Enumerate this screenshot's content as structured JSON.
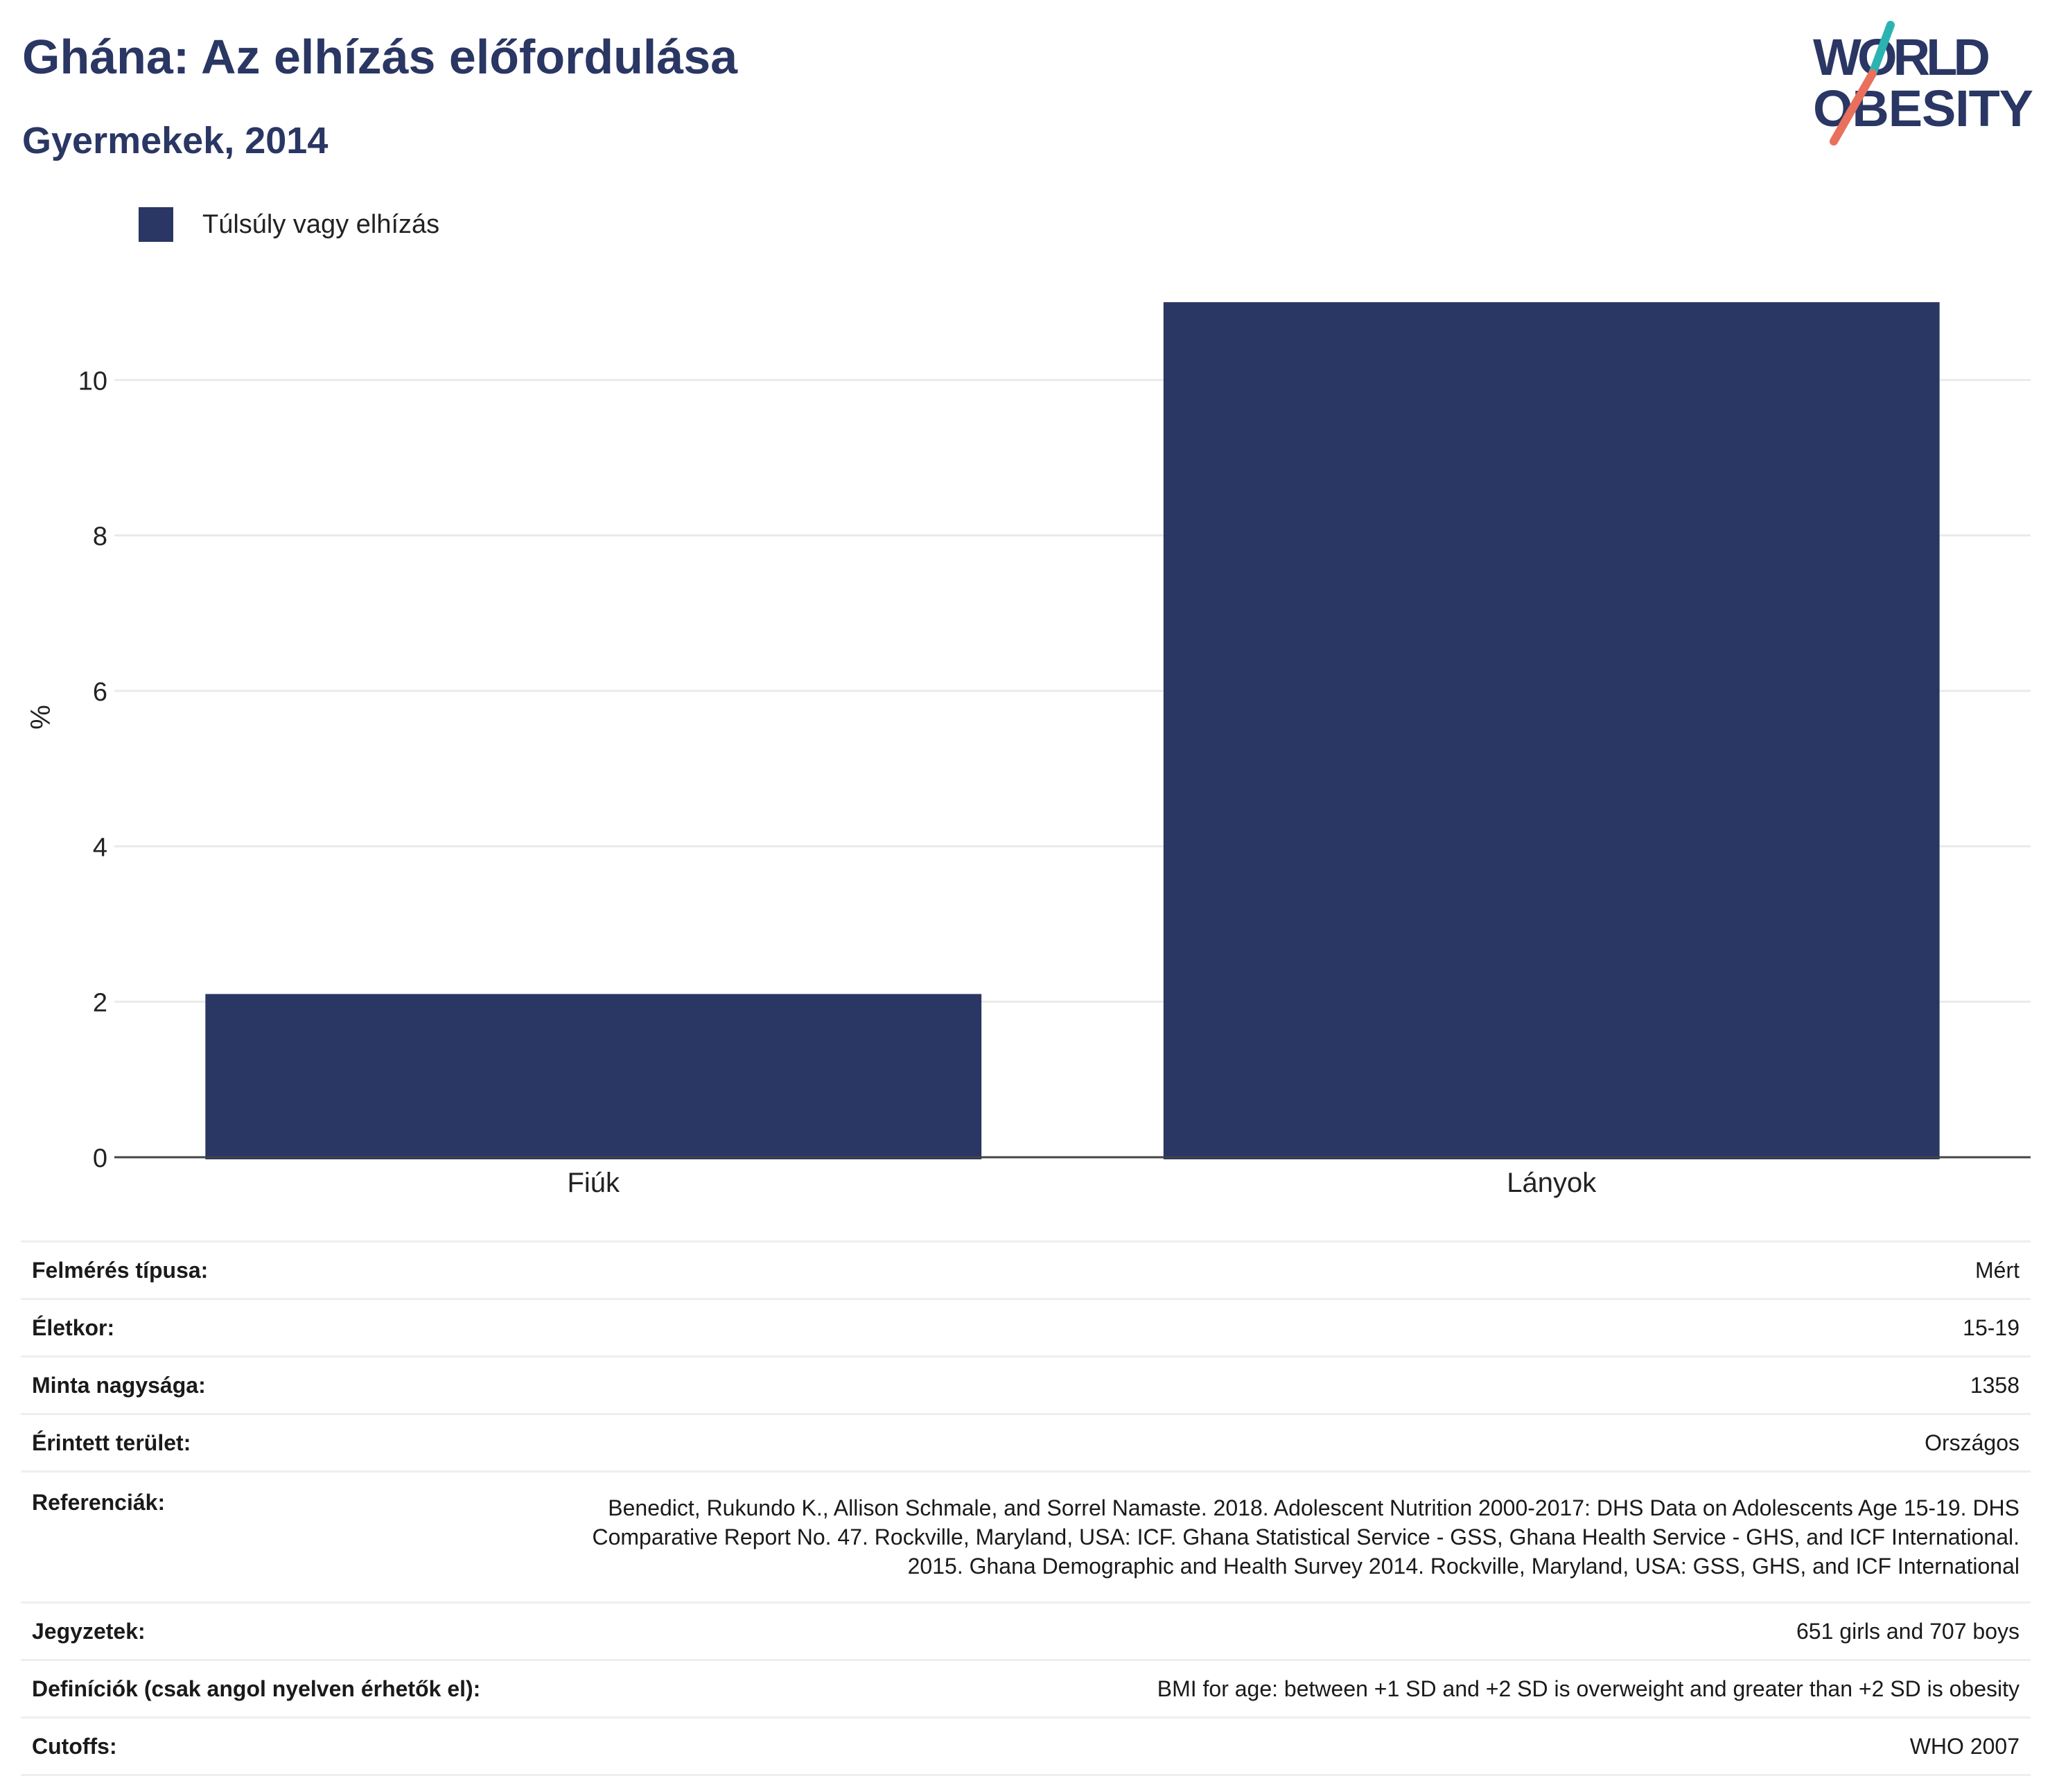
{
  "header": {
    "title": "Ghána: Az elhízás előfordulása",
    "subtitle": "Gyermekek, 2014"
  },
  "logo": {
    "line1": "WORLD",
    "line2": "OBESITY",
    "colors": {
      "text": "#2a3663",
      "slash_top": "#2bb3b1",
      "slash_bottom": "#e8705c"
    }
  },
  "legend": {
    "label": "Túlsúly vagy elhízás",
    "color": "#2a3663"
  },
  "chart_data": {
    "type": "bar",
    "categories": [
      "Fiúk",
      "Lányok"
    ],
    "series": [
      {
        "name": "Túlsúly vagy elhízás",
        "values": [
          2.1,
          11.0
        ],
        "color": "#2a3663"
      }
    ],
    "ylabel": "%",
    "xlabel": "",
    "ylim": [
      0,
      11.5
    ],
    "yticks": [
      0,
      2,
      4,
      6,
      8,
      10
    ],
    "grid": true,
    "legend_position": "top-left"
  },
  "info_table": [
    {
      "key": "Felmérés típusa:",
      "value": "Mért"
    },
    {
      "key": "Életkor:",
      "value": "15-19"
    },
    {
      "key": "Minta nagysága:",
      "value": "1358"
    },
    {
      "key": "Érintett terület:",
      "value": "Országos"
    },
    {
      "key": "Referenciák:",
      "value": "Benedict, Rukundo K., Allison Schmale, and Sorrel Namaste. 2018. Adolescent Nutrition 2000-2017: DHS Data on Adolescents Age 15-19. DHS Comparative Report No. 47. Rockville, Maryland, USA: ICF. Ghana Statistical Service - GSS, Ghana Health Service - GHS, and ICF International. 2015. Ghana Demographic and Health Survey 2014. Rockville, Maryland, USA: GSS, GHS, and ICF International"
    },
    {
      "key": "Jegyzetek:",
      "value": "651 girls and 707 boys"
    },
    {
      "key": "Definíciók (csak angol nyelven érhetők el):",
      "value": "BMI for age: between +1 SD and +2 SD is overweight and greater than +2 SD is obesity"
    },
    {
      "key": "Cutoffs:",
      "value": "WHO 2007"
    }
  ]
}
